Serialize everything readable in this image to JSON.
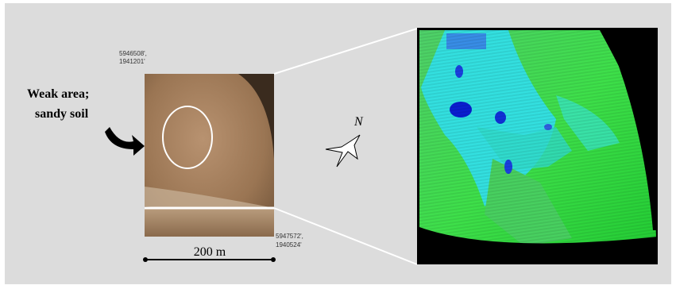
{
  "annotation": {
    "lines": [
      "Weak area;",
      "sandy soil"
    ]
  },
  "coordinates": {
    "top": [
      "5946508',",
      "1941201'"
    ],
    "bottom": [
      "5947572',",
      "1940524'"
    ]
  },
  "scale_label": "200 m",
  "north_label": "N"
}
